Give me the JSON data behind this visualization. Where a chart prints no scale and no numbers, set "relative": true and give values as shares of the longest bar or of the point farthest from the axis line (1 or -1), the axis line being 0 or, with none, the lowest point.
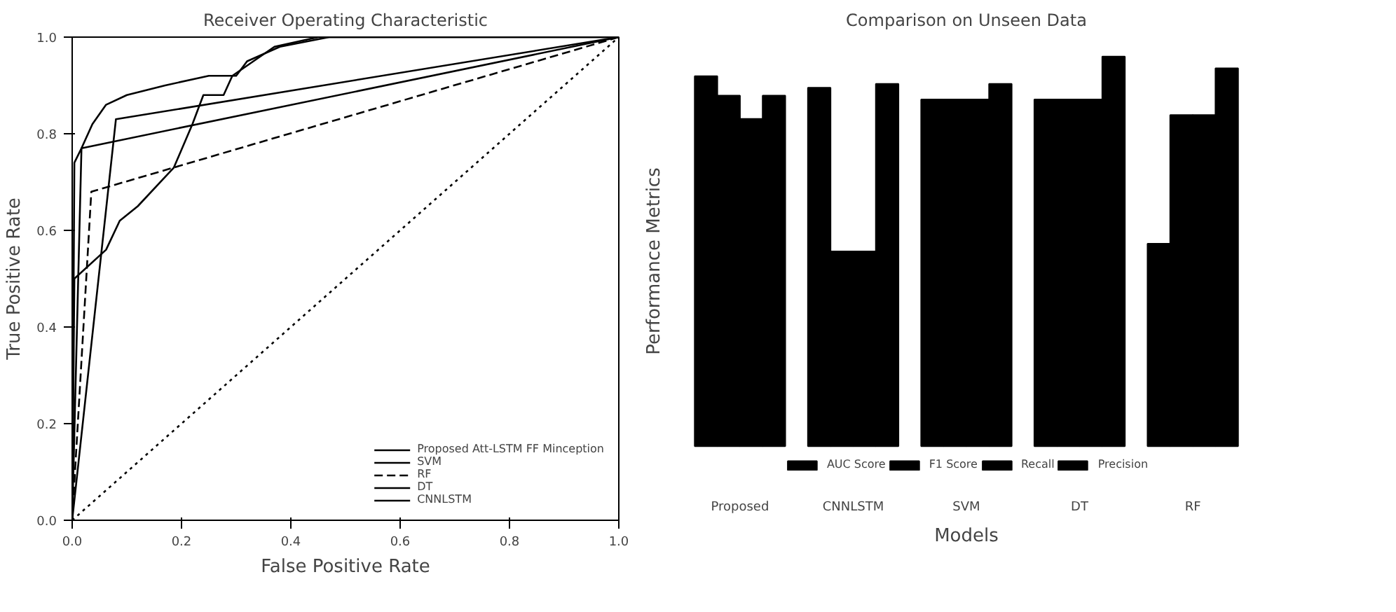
{
  "chart_data": [
    {
      "type": "line",
      "title": "Receiver Operating Characteristic",
      "xlabel": "False Positive Rate",
      "ylabel": "True Positive Rate",
      "xlim": [
        0,
        1
      ],
      "ylim": [
        0,
        1
      ],
      "xticks": [
        {
          "value": 0,
          "label": "0.0"
        },
        0.2,
        0.4,
        0.6,
        0.8,
        {
          "value": 1,
          "label": "1.0"
        }
      ],
      "yticks": [
        {
          "value": 0,
          "label": "0.0"
        },
        0.2,
        0.4,
        0.6,
        0.8,
        {
          "value": 1,
          "label": "1.0"
        }
      ],
      "grid": false,
      "legend": "bottom right",
      "marker": "none",
      "series": [
        {
          "name": "Proposed Att-LSTM FF Minception",
          "color": "#000000",
          "x": [
            0,
            0.004,
            0.017,
            0.037,
            0.062,
            0.1,
            0.17,
            0.25,
            0.3,
            0.32,
            0.38,
            0.47,
            1
          ],
          "values": [
            0,
            0.74,
            0.77,
            0.82,
            0.86,
            0.88,
            0.9,
            0.92,
            0.92,
            0.95,
            0.98,
            1,
            1
          ]
        },
        {
          "name": "SVM",
          "color": "#000000",
          "x": [
            0,
            0.017,
            1
          ],
          "values": [
            0,
            0.77,
            1
          ]
        },
        {
          "name": "RF",
          "color": "#000000",
          "line_style": "dashed",
          "x": [
            0,
            0.035,
            1
          ],
          "values": [
            0,
            0.68,
            1
          ]
        },
        {
          "name": "DT",
          "color": "#000000",
          "x": [
            0,
            0.08,
            1
          ],
          "values": [
            0,
            0.83,
            1
          ]
        },
        {
          "name": "CNNLSTM",
          "color": "#000000",
          "x": [
            0,
            0.004,
            0.062,
            0.087,
            0.12,
            0.186,
            0.22,
            0.24,
            0.277,
            0.293,
            0.37,
            0.45,
            1
          ],
          "values": [
            0,
            0.5,
            0.56,
            0.62,
            0.65,
            0.73,
            0.82,
            0.88,
            0.88,
            0.92,
            0.98,
            1,
            1
          ]
        },
        {
          "color": "#000000",
          "line_style": "dotted",
          "x": [
            0,
            1
          ],
          "values": [
            0,
            1
          ]
        }
      ]
    },
    {
      "type": "bar",
      "title": "Comparison on Unseen Data",
      "xlabel": "Models",
      "ylabel": "Performance Metrics",
      "relative": true,
      "grid": false,
      "legend": "bottom",
      "categories": [
        "Proposed",
        "CNNLSTM",
        "SVM",
        "DT",
        "RF"
      ],
      "series": [
        {
          "name": "AUC Score",
          "color": "#000000",
          "values": [
            0.95,
            0.92,
            0.89,
            0.89,
            0.52
          ]
        },
        {
          "name": "F1 Score",
          "color": "#000000",
          "values": [
            0.9,
            0.5,
            0.89,
            0.89,
            0.85
          ]
        },
        {
          "name": "Recall",
          "color": "#000000",
          "values": [
            0.84,
            0.5,
            0.89,
            0.89,
            0.85
          ]
        },
        {
          "name": "Precision",
          "color": "#000000",
          "values": [
            0.9,
            0.93,
            0.93,
            1.0,
            0.97
          ]
        }
      ]
    }
  ]
}
